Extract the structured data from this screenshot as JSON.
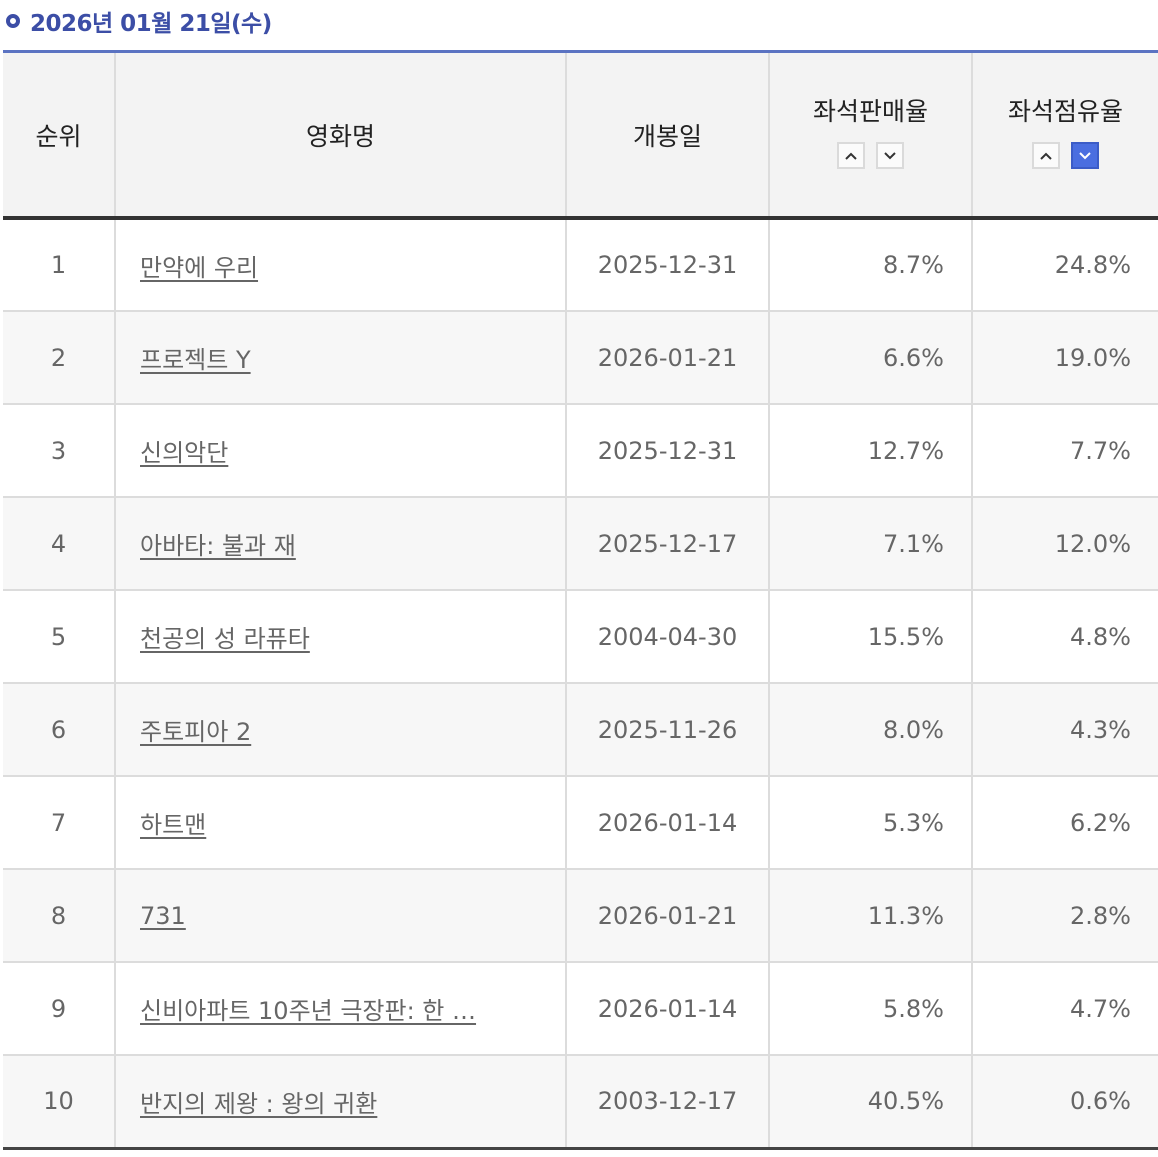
{
  "header": {
    "date_label": "2026년 01월 21일(수)"
  },
  "table": {
    "columns": {
      "rank": "순위",
      "title": "영화명",
      "release_date": "개봉일",
      "seat_sales_rate": "좌석판매율",
      "seat_occupancy_rate": "좌석점유율"
    },
    "sort": {
      "active_column": "seat_occupancy_rate",
      "active_direction": "desc"
    },
    "rows": [
      {
        "rank": "1",
        "title": "만약에 우리",
        "release_date": "2025-12-31",
        "seat_sales_rate": "8.7%",
        "seat_occupancy_rate": "24.8%"
      },
      {
        "rank": "2",
        "title": "프로젝트 Y",
        "release_date": "2026-01-21",
        "seat_sales_rate": "6.6%",
        "seat_occupancy_rate": "19.0%"
      },
      {
        "rank": "3",
        "title": "신의악단",
        "release_date": "2025-12-31",
        "seat_sales_rate": "12.7%",
        "seat_occupancy_rate": "7.7%"
      },
      {
        "rank": "4",
        "title": "아바타: 불과 재",
        "release_date": "2025-12-17",
        "seat_sales_rate": "7.1%",
        "seat_occupancy_rate": "12.0%"
      },
      {
        "rank": "5",
        "title": "천공의 성 라퓨타",
        "release_date": "2004-04-30",
        "seat_sales_rate": "15.5%",
        "seat_occupancy_rate": "4.8%"
      },
      {
        "rank": "6",
        "title": "주토피아 2",
        "release_date": "2025-11-26",
        "seat_sales_rate": "8.0%",
        "seat_occupancy_rate": "4.3%"
      },
      {
        "rank": "7",
        "title": "하트맨",
        "release_date": "2026-01-14",
        "seat_sales_rate": "5.3%",
        "seat_occupancy_rate": "6.2%"
      },
      {
        "rank": "8",
        "title": "731",
        "release_date": "2026-01-21",
        "seat_sales_rate": "11.3%",
        "seat_occupancy_rate": "2.8%"
      },
      {
        "rank": "9",
        "title": "신비아파트 10주년 극장판: 한 …",
        "release_date": "2026-01-14",
        "seat_sales_rate": "5.8%",
        "seat_occupancy_rate": "4.7%"
      },
      {
        "rank": "10",
        "title": "반지의 제왕 : 왕의 귀환",
        "release_date": "2003-12-17",
        "seat_sales_rate": "40.5%",
        "seat_occupancy_rate": "0.6%"
      }
    ]
  },
  "colors": {
    "accent": "#3c4ea6",
    "active_sort": "#4a6ee0",
    "header_bg": "#f3f3f3",
    "text": "#666666"
  },
  "icons": {
    "bullet": "circle-bullet-icon",
    "sort_up": "chevron-up-icon",
    "sort_down": "chevron-down-icon"
  }
}
